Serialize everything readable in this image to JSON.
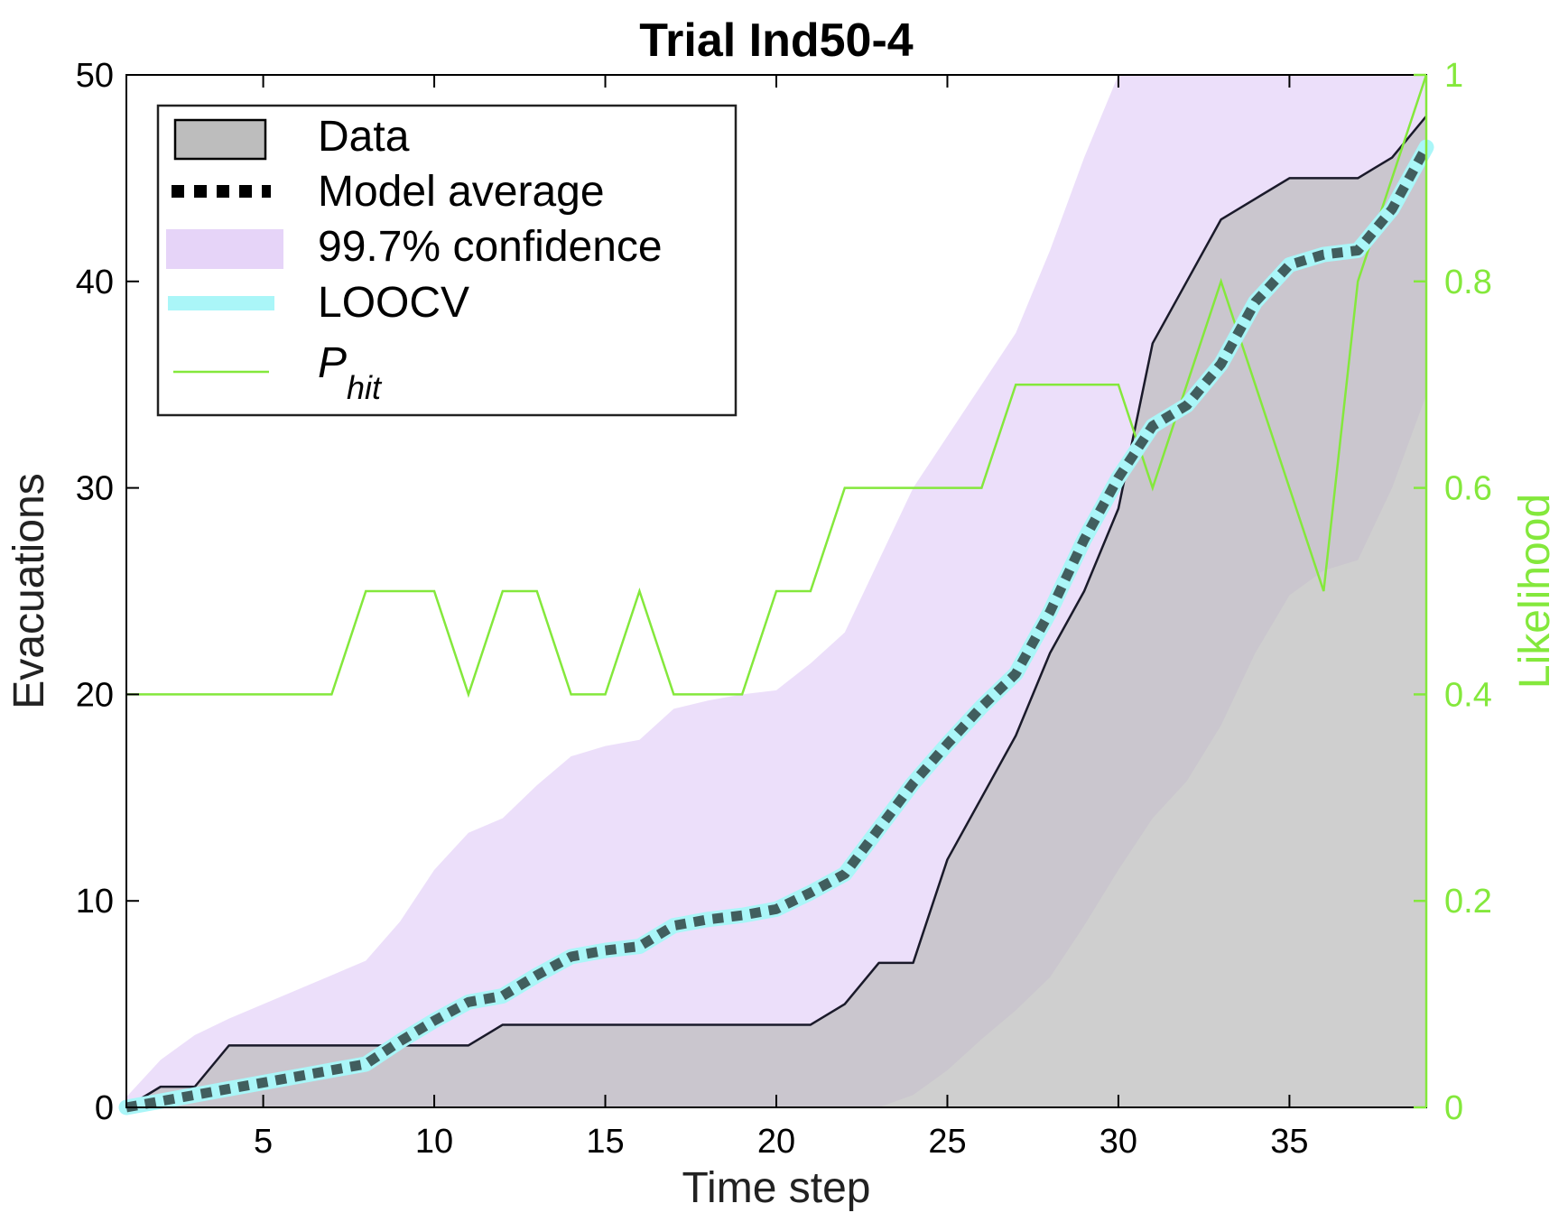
{
  "chart_data": {
    "type": "line",
    "title": "Trial Ind50-4",
    "xlabel": "Time step",
    "ylabel": "Evacuations",
    "ylabel_right": "Likelihood",
    "xlim": [
      1,
      39
    ],
    "ylim": [
      0,
      50
    ],
    "ylim_right": [
      0,
      1
    ],
    "xticks": [
      5,
      10,
      15,
      20,
      25,
      30,
      35
    ],
    "yticks": [
      0,
      10,
      20,
      30,
      40,
      50
    ],
    "yticks_right": [
      0,
      0.2,
      0.4,
      0.6,
      0.8,
      1
    ],
    "ytick_labels_right": [
      "0",
      "0.2",
      "0.4",
      "0.6",
      "0.8",
      "1"
    ],
    "grid": false,
    "legend_position": "top-left",
    "x": [
      1,
      2,
      3,
      4,
      5,
      6,
      7,
      8,
      9,
      10,
      11,
      12,
      13,
      14,
      15,
      16,
      17,
      18,
      19,
      20,
      21,
      22,
      23,
      24,
      25,
      26,
      27,
      28,
      29,
      30,
      31,
      32,
      33,
      34,
      35,
      36,
      37,
      38,
      39
    ],
    "series": [
      {
        "name": "Data",
        "style": "filled-area",
        "axis": "left",
        "values": [
          0,
          1,
          1,
          3,
          3,
          3,
          3,
          3,
          3,
          3,
          3,
          4,
          4,
          4,
          4,
          4,
          4,
          4,
          4,
          4,
          4,
          5,
          7,
          7,
          12,
          15,
          18,
          22,
          25,
          29,
          37,
          40,
          43,
          44,
          45,
          45,
          45,
          46,
          48
        ]
      },
      {
        "name": "Model average",
        "style": "dotted-thick",
        "axis": "left",
        "values": [
          0,
          0.3,
          0.6,
          0.9,
          1.2,
          1.5,
          1.8,
          2.1,
          3.2,
          4.2,
          5.1,
          5.4,
          6.4,
          7.3,
          7.6,
          7.8,
          8.8,
          9.1,
          9.3,
          9.6,
          10.4,
          11.3,
          13.5,
          15.7,
          17.6,
          19.4,
          21.0,
          24.0,
          27.5,
          30.5,
          33.0,
          34.0,
          36.0,
          39.0,
          40.8,
          41.3,
          41.5,
          43.5,
          46.5
        ]
      },
      {
        "name": "99.7% confidence",
        "style": "band",
        "axis": "left",
        "upper": [
          0.5,
          2.3,
          3.5,
          4.3,
          5.0,
          5.7,
          6.4,
          7.1,
          9.0,
          11.5,
          13.3,
          14.0,
          15.6,
          17.0,
          17.5,
          17.8,
          19.3,
          19.7,
          20.0,
          20.2,
          21.5,
          23.0,
          26.5,
          30.0,
          32.5,
          35.0,
          37.5,
          41.5,
          46.0,
          50.0,
          50.0,
          50.0,
          50.0,
          50.0,
          50.0,
          50.0,
          50.0,
          50.0,
          50.0
        ],
        "lower": [
          0,
          0,
          0,
          0,
          0,
          0,
          0,
          0,
          0,
          0,
          0,
          0,
          0,
          0,
          0,
          0,
          0,
          0,
          0,
          0,
          0,
          0,
          0,
          0.6,
          1.8,
          3.3,
          4.7,
          6.3,
          8.8,
          11.5,
          14.0,
          15.8,
          18.5,
          22.0,
          24.8,
          26.0,
          26.5,
          30.0,
          34.5
        ]
      },
      {
        "name": "LOOCV",
        "style": "thick-line",
        "axis": "left",
        "values": [
          0,
          0.3,
          0.6,
          0.9,
          1.2,
          1.5,
          1.8,
          2.1,
          3.2,
          4.2,
          5.1,
          5.4,
          6.4,
          7.3,
          7.6,
          7.8,
          8.8,
          9.1,
          9.3,
          9.6,
          10.4,
          11.3,
          13.5,
          15.7,
          17.6,
          19.4,
          21.0,
          24.0,
          27.5,
          30.5,
          33.0,
          34.0,
          36.0,
          39.0,
          40.8,
          41.3,
          41.5,
          43.5,
          46.5
        ]
      },
      {
        "name": "P",
        "name_subscript": "hit",
        "style": "thin-line",
        "axis": "right",
        "values": [
          0.4,
          0.4,
          0.4,
          0.4,
          0.4,
          0.4,
          0.4,
          0.5,
          0.5,
          0.5,
          0.4,
          0.5,
          0.5,
          0.4,
          0.4,
          0.5,
          0.4,
          0.4,
          0.4,
          0.5,
          0.5,
          0.6,
          0.6,
          0.6,
          0.6,
          0.6,
          0.7,
          0.7,
          0.7,
          0.7,
          0.6,
          0.7,
          0.8,
          0.7,
          0.6,
          0.5,
          0.8,
          0.9,
          1.0
        ]
      }
    ],
    "colors": {
      "data_fill": "#bdbdbd",
      "data_line": "#1a1a2a",
      "confidence": "#e6d4f8",
      "model_average": "#000000",
      "loocv": "#aaf6f8",
      "p_hit": "#84e83c",
      "axis": "#000000"
    }
  }
}
